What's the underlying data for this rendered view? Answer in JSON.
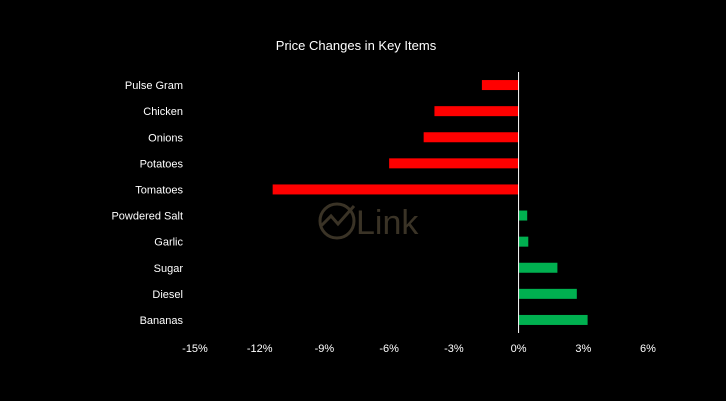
{
  "chart_data": {
    "type": "bar",
    "orientation": "horizontal",
    "title": "Price Changes in Key Items",
    "xlabel": "",
    "ylabel": "",
    "xlim": [
      -15,
      6
    ],
    "x_ticks": [
      -15,
      -12,
      -9,
      -6,
      -3,
      0,
      3,
      6
    ],
    "x_tick_labels": [
      "-15%",
      "-12%",
      "-9%",
      "-6%",
      "-3%",
      "0%",
      "3%",
      "6%"
    ],
    "grid": false,
    "legend": "none",
    "categories": [
      "Pulse Gram",
      "Chicken",
      "Onions",
      "Potatoes",
      "Tomatoes",
      "Powdered Salt",
      "Garlic",
      "Sugar",
      "Diesel",
      "Bananas"
    ],
    "values": [
      -1.7,
      -3.9,
      -4.4,
      -6.0,
      -11.4,
      0.4,
      0.45,
      1.8,
      2.7,
      3.2
    ],
    "colors": {
      "negative": "#ff0000",
      "positive": "#00b050"
    }
  },
  "watermark": {
    "text": "Link",
    "color": "#3a3326"
  }
}
